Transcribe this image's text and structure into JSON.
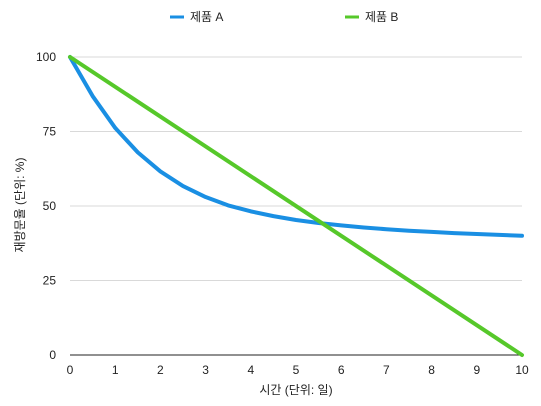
{
  "chart_data": {
    "type": "line",
    "xlabel": "시간 (단위: 일)",
    "ylabel": "재방문율 (단위: %)",
    "xlim": [
      0,
      10
    ],
    "ylim": [
      0,
      100
    ],
    "x_ticks": [
      "0",
      "1",
      "2",
      "3",
      "4",
      "5",
      "6",
      "7",
      "8",
      "9",
      "10"
    ],
    "y_ticks": [
      "0",
      "25",
      "50",
      "75",
      "100"
    ],
    "grid": "horizontal",
    "legend_position": "top",
    "series": [
      {
        "name": "제품 A",
        "color": "#1a8fe3",
        "x": [
          0,
          0.5,
          1,
          1.5,
          2,
          2.5,
          3,
          3.5,
          4,
          4.5,
          5,
          5.5,
          6,
          6.5,
          7,
          7.5,
          8,
          8.5,
          9,
          9.5,
          10
        ],
        "y": [
          100,
          86.9,
          76.2,
          68.0,
          61.6,
          56.7,
          53.0,
          50.2,
          48.2,
          46.6,
          45.3,
          44.3,
          43.5,
          42.8,
          42.2,
          41.7,
          41.3,
          40.9,
          40.6,
          40.3,
          40.0
        ]
      },
      {
        "name": "제품 B",
        "color": "#56c82a",
        "x": [
          0,
          10
        ],
        "y": [
          100,
          0
        ]
      }
    ]
  }
}
